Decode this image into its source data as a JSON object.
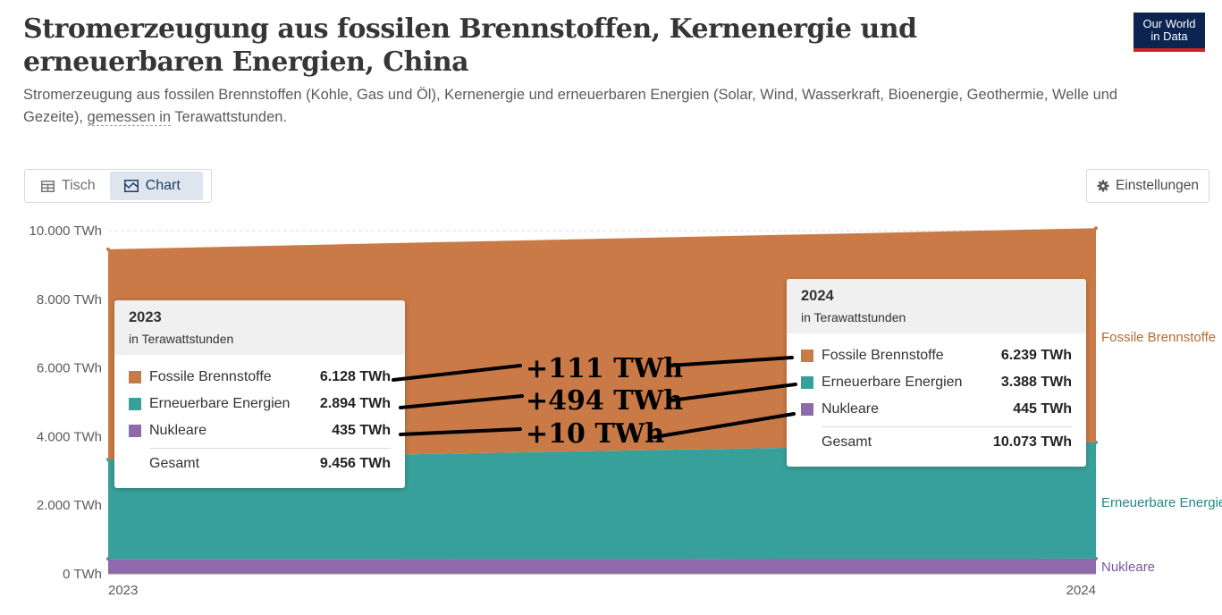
{
  "header": {
    "title": "Stromerzeugung aus fossilen Brennstoffen, Kernenergie und erneuerbaren Energien, China",
    "subtitle_part1": "Stromerzeugung aus fossilen Brennstoffen (Kohle, Gas und Öl), Kernenergie und erneuerbaren Energien (Solar, Wind, Wasserkraft, Bioenergie, Geothermie, Welle und",
    "subtitle_part2": "Gezeite), ",
    "subtitle_link": "gemessen in",
    "subtitle_part3": " Terawattstunden.",
    "logo_line1": "Our World",
    "logo_line2": "in Data"
  },
  "tabs": {
    "table_label": "Tisch",
    "chart_label": "Chart",
    "active": "chart"
  },
  "settings_label": "Einstellungen",
  "colors": {
    "fossil": "#c97a46",
    "renewable": "#38a09a",
    "nuclear": "#8e6aac",
    "fossil_label": "#b86a2e",
    "renewable_label": "#1f8a83",
    "nuclear_label": "#7a55a0"
  },
  "tooltip_2023": {
    "year": "2023",
    "unit": "in Terawattstunden",
    "rows": [
      {
        "name": "Fossile Brennstoffe",
        "value": "6.128 TWh"
      },
      {
        "name": "Erneuerbare Energien",
        "value": "2.894 TWh"
      },
      {
        "name": "Nukleare",
        "value": "435 TWh"
      }
    ],
    "total_label": "Gesamt",
    "total_value": "9.456 TWh"
  },
  "tooltip_2024": {
    "year": "2024",
    "unit": "in Terawattstunden",
    "rows": [
      {
        "name": "Fossile Brennstoffe",
        "value": "6.239 TWh"
      },
      {
        "name": "Erneuerbare Energien",
        "value": "3.388 TWh"
      },
      {
        "name": "Nukleare",
        "value": "445 TWh"
      }
    ],
    "total_label": "Gesamt",
    "total_value": "10.073 TWh"
  },
  "annotations": [
    "+111 TWh",
    "+494 TWh",
    "+10 TWh"
  ],
  "chart_data": {
    "type": "area",
    "stacked": true,
    "x": [
      2023,
      2024
    ],
    "series": [
      {
        "name": "Nukleare",
        "values": [
          435,
          445
        ]
      },
      {
        "name": "Erneuerbare Energien",
        "values": [
          2894,
          3388
        ]
      },
      {
        "name": "Fossile Brennstoffe",
        "values": [
          6128,
          6239
        ]
      }
    ],
    "ylim": [
      0,
      10000
    ],
    "yticks": [
      0,
      2000,
      4000,
      6000,
      8000,
      10000
    ],
    "ytick_labels": [
      "0 TWh",
      "2.000 TWh",
      "4.000 TWh",
      "6.000 TWh",
      "8.000 TWh",
      "10.000 TWh"
    ],
    "xtick_labels": [
      "2023",
      "2024"
    ],
    "grid": true,
    "legend": "right, inline labels"
  }
}
